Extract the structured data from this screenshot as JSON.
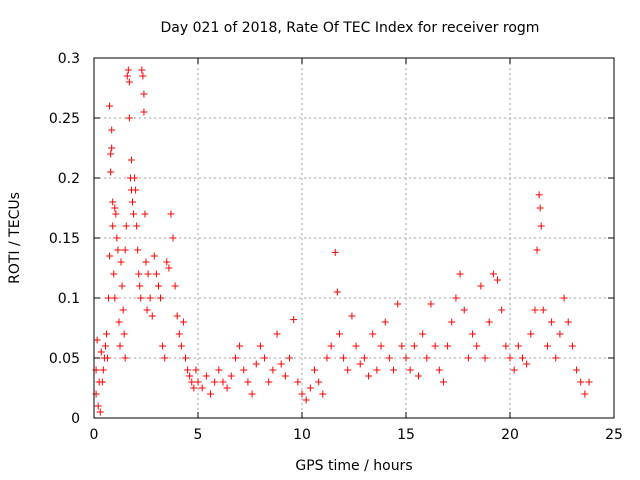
{
  "chart_data": {
    "type": "scatter",
    "title": "Day 021 of 2018, Rate Of TEC Index for receiver rogm",
    "xlabel": "GPS time / hours",
    "ylabel": "ROTI / TECUs",
    "xlim": [
      0,
      25
    ],
    "ylim": [
      0,
      0.3
    ],
    "xticks": [
      0,
      5,
      10,
      15,
      20,
      25
    ],
    "yticks": [
      0,
      0.05,
      0.1,
      0.15,
      0.2,
      0.25,
      0.3
    ],
    "xtick_labels": [
      "0",
      "5",
      "10",
      "15",
      "20",
      "25"
    ],
    "ytick_labels": [
      "0",
      "0.05",
      "0.1",
      "0.15",
      "0.2",
      "0.25",
      "0.3"
    ],
    "grid": true,
    "marker": "+",
    "color": "#ff0000",
    "series": [
      {
        "name": "ROTI",
        "points": [
          [
            0.1,
            0.04
          ],
          [
            0.1,
            0.02
          ],
          [
            0.15,
            0.065
          ],
          [
            0.2,
            0.01
          ],
          [
            0.25,
            0.03
          ],
          [
            0.3,
            0.005
          ],
          [
            0.35,
            0.055
          ],
          [
            0.4,
            0.03
          ],
          [
            0.45,
            0.04
          ],
          [
            0.5,
            0.05
          ],
          [
            0.55,
            0.06
          ],
          [
            0.6,
            0.07
          ],
          [
            0.65,
            0.05
          ],
          [
            0.7,
            0.1
          ],
          [
            0.75,
            0.26
          ],
          [
            0.75,
            0.135
          ],
          [
            0.8,
            0.22
          ],
          [
            0.8,
            0.205
          ],
          [
            0.85,
            0.24
          ],
          [
            0.85,
            0.225
          ],
          [
            0.9,
            0.18
          ],
          [
            0.9,
            0.16
          ],
          [
            0.95,
            0.12
          ],
          [
            1.0,
            0.1
          ],
          [
            1.0,
            0.175
          ],
          [
            1.05,
            0.17
          ],
          [
            1.1,
            0.15
          ],
          [
            1.15,
            0.14
          ],
          [
            1.2,
            0.08
          ],
          [
            1.25,
            0.06
          ],
          [
            1.3,
            0.13
          ],
          [
            1.35,
            0.11
          ],
          [
            1.4,
            0.09
          ],
          [
            1.45,
            0.07
          ],
          [
            1.5,
            0.05
          ],
          [
            1.5,
            0.14
          ],
          [
            1.55,
            0.16
          ],
          [
            1.6,
            0.285
          ],
          [
            1.65,
            0.29
          ],
          [
            1.7,
            0.28
          ],
          [
            1.7,
            0.25
          ],
          [
            1.75,
            0.2
          ],
          [
            1.8,
            0.19
          ],
          [
            1.8,
            0.215
          ],
          [
            1.85,
            0.18
          ],
          [
            1.9,
            0.17
          ],
          [
            1.95,
            0.2
          ],
          [
            2.0,
            0.19
          ],
          [
            2.05,
            0.16
          ],
          [
            2.1,
            0.14
          ],
          [
            2.15,
            0.12
          ],
          [
            2.2,
            0.11
          ],
          [
            2.25,
            0.1
          ],
          [
            2.3,
            0.29
          ],
          [
            2.35,
            0.285
          ],
          [
            2.4,
            0.255
          ],
          [
            2.4,
            0.27
          ],
          [
            2.45,
            0.17
          ],
          [
            2.5,
            0.13
          ],
          [
            2.55,
            0.09
          ],
          [
            2.6,
            0.12
          ],
          [
            2.7,
            0.1
          ],
          [
            2.8,
            0.085
          ],
          [
            2.9,
            0.135
          ],
          [
            3.0,
            0.12
          ],
          [
            3.1,
            0.11
          ],
          [
            3.2,
            0.1
          ],
          [
            3.3,
            0.06
          ],
          [
            3.4,
            0.05
          ],
          [
            3.5,
            0.13
          ],
          [
            3.6,
            0.125
          ],
          [
            3.7,
            0.17
          ],
          [
            3.8,
            0.15
          ],
          [
            3.9,
            0.11
          ],
          [
            4.0,
            0.085
          ],
          [
            4.1,
            0.07
          ],
          [
            4.2,
            0.06
          ],
          [
            4.3,
            0.08
          ],
          [
            4.4,
            0.05
          ],
          [
            4.5,
            0.04
          ],
          [
            4.6,
            0.035
          ],
          [
            4.7,
            0.03
          ],
          [
            4.8,
            0.025
          ],
          [
            4.9,
            0.04
          ],
          [
            5.0,
            0.03
          ],
          [
            5.2,
            0.025
          ],
          [
            5.4,
            0.035
          ],
          [
            5.6,
            0.02
          ],
          [
            5.8,
            0.03
          ],
          [
            6.0,
            0.04
          ],
          [
            6.2,
            0.03
          ],
          [
            6.4,
            0.025
          ],
          [
            6.6,
            0.035
          ],
          [
            6.8,
            0.05
          ],
          [
            7.0,
            0.06
          ],
          [
            7.2,
            0.04
          ],
          [
            7.4,
            0.03
          ],
          [
            7.6,
            0.02
          ],
          [
            7.8,
            0.045
          ],
          [
            8.0,
            0.06
          ],
          [
            8.2,
            0.05
          ],
          [
            8.4,
            0.03
          ],
          [
            8.6,
            0.04
          ],
          [
            8.8,
            0.07
          ],
          [
            9.0,
            0.045
          ],
          [
            9.2,
            0.035
          ],
          [
            9.4,
            0.05
          ],
          [
            9.6,
            0.082
          ],
          [
            9.8,
            0.03
          ],
          [
            10.0,
            0.02
          ],
          [
            10.2,
            0.015
          ],
          [
            10.4,
            0.025
          ],
          [
            10.6,
            0.04
          ],
          [
            10.8,
            0.03
          ],
          [
            11.0,
            0.02
          ],
          [
            11.2,
            0.05
          ],
          [
            11.4,
            0.06
          ],
          [
            11.6,
            0.138
          ],
          [
            11.7,
            0.105
          ],
          [
            11.8,
            0.07
          ],
          [
            12.0,
            0.05
          ],
          [
            12.2,
            0.04
          ],
          [
            12.4,
            0.085
          ],
          [
            12.6,
            0.06
          ],
          [
            12.8,
            0.045
          ],
          [
            13.0,
            0.05
          ],
          [
            13.2,
            0.035
          ],
          [
            13.4,
            0.07
          ],
          [
            13.6,
            0.04
          ],
          [
            13.8,
            0.06
          ],
          [
            14.0,
            0.08
          ],
          [
            14.2,
            0.05
          ],
          [
            14.4,
            0.04
          ],
          [
            14.6,
            0.095
          ],
          [
            14.8,
            0.06
          ],
          [
            15.0,
            0.05
          ],
          [
            15.2,
            0.04
          ],
          [
            15.4,
            0.06
          ],
          [
            15.6,
            0.035
          ],
          [
            15.8,
            0.07
          ],
          [
            16.0,
            0.05
          ],
          [
            16.2,
            0.095
          ],
          [
            16.4,
            0.06
          ],
          [
            16.6,
            0.04
          ],
          [
            16.8,
            0.03
          ],
          [
            17.0,
            0.06
          ],
          [
            17.2,
            0.08
          ],
          [
            17.4,
            0.1
          ],
          [
            17.6,
            0.12
          ],
          [
            17.8,
            0.09
          ],
          [
            18.0,
            0.05
          ],
          [
            18.2,
            0.07
          ],
          [
            18.4,
            0.06
          ],
          [
            18.6,
            0.11
          ],
          [
            18.8,
            0.05
          ],
          [
            19.0,
            0.08
          ],
          [
            19.2,
            0.12
          ],
          [
            19.4,
            0.115
          ],
          [
            19.6,
            0.09
          ],
          [
            19.8,
            0.06
          ],
          [
            20.0,
            0.05
          ],
          [
            20.2,
            0.04
          ],
          [
            20.4,
            0.06
          ],
          [
            20.6,
            0.05
          ],
          [
            20.8,
            0.045
          ],
          [
            21.0,
            0.07
          ],
          [
            21.2,
            0.09
          ],
          [
            21.3,
            0.14
          ],
          [
            21.4,
            0.186
          ],
          [
            21.45,
            0.175
          ],
          [
            21.5,
            0.16
          ],
          [
            21.6,
            0.09
          ],
          [
            21.8,
            0.06
          ],
          [
            22.0,
            0.08
          ],
          [
            22.2,
            0.05
          ],
          [
            22.4,
            0.07
          ],
          [
            22.6,
            0.1
          ],
          [
            22.8,
            0.08
          ],
          [
            23.0,
            0.06
          ],
          [
            23.2,
            0.04
          ],
          [
            23.4,
            0.03
          ],
          [
            23.6,
            0.02
          ],
          [
            23.8,
            0.03
          ]
        ]
      }
    ]
  }
}
